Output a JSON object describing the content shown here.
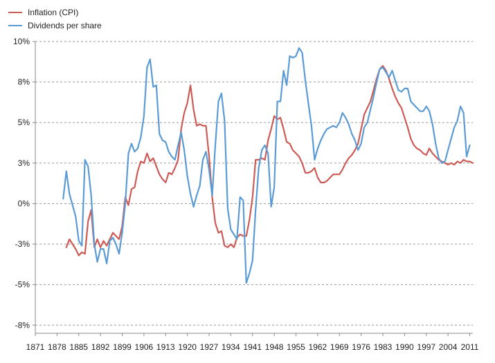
{
  "chart_data": {
    "type": "line",
    "title": "",
    "xlabel": "",
    "ylabel": "",
    "xlim": [
      1871,
      2012
    ],
    "ylim": [
      -8,
      10
    ],
    "x_ticks": [
      1871,
      1878,
      1885,
      1892,
      1899,
      1906,
      1913,
      1920,
      1927,
      1934,
      1941,
      1948,
      1955,
      1962,
      1969,
      1976,
      1983,
      1990,
      1997,
      2004,
      2011
    ],
    "y_ticks": [
      {
        "value": 10,
        "label": "10%"
      },
      {
        "value": 7.5,
        "label": "8%"
      },
      {
        "value": 5,
        "label": "5%"
      },
      {
        "value": 2.5,
        "label": "3%"
      },
      {
        "value": 0,
        "label": "0%"
      },
      {
        "value": -2.5,
        "label": "-3%"
      },
      {
        "value": -5,
        "label": "-5%"
      },
      {
        "value": -7.5,
        "label": "-8%"
      }
    ],
    "grid": true,
    "legend_position": "top-left",
    "series": [
      {
        "name": "Inflation (CPI)",
        "color": "#cc5a55",
        "points": [
          [
            1881,
            -2.7
          ],
          [
            1882,
            -2.2
          ],
          [
            1883,
            -2.5
          ],
          [
            1884,
            -2.8
          ],
          [
            1885,
            -3.2
          ],
          [
            1886,
            -3
          ],
          [
            1887,
            -3.1
          ],
          [
            1888,
            -1.1
          ],
          [
            1889,
            -0.4
          ],
          [
            1890,
            -2.7
          ],
          [
            1891,
            -2.2
          ],
          [
            1892,
            -2.7
          ],
          [
            1893,
            -2.3
          ],
          [
            1894,
            -2.6
          ],
          [
            1895,
            -2.2
          ],
          [
            1896,
            -1.8
          ],
          [
            1897,
            -2
          ],
          [
            1898,
            -2.2
          ],
          [
            1899,
            -1.4
          ],
          [
            1900,
            0.4
          ],
          [
            1901,
            -0.1
          ],
          [
            1902,
            0.9
          ],
          [
            1903,
            1
          ],
          [
            1904,
            2
          ],
          [
            1905,
            2.6
          ],
          [
            1906,
            2.5
          ],
          [
            1907,
            3.1
          ],
          [
            1908,
            2.6
          ],
          [
            1909,
            2.8
          ],
          [
            1910,
            2.3
          ],
          [
            1911,
            1.8
          ],
          [
            1912,
            1.5
          ],
          [
            1913,
            1.3
          ],
          [
            1914,
            1.9
          ],
          [
            1915,
            1.8
          ],
          [
            1916,
            2.2
          ],
          [
            1917,
            2.7
          ],
          [
            1918,
            4.6
          ],
          [
            1919,
            5.6
          ],
          [
            1920,
            6.2
          ],
          [
            1921,
            7.3
          ],
          [
            1922,
            5.8
          ],
          [
            1923,
            4.8
          ],
          [
            1924,
            4.9
          ],
          [
            1925,
            4.8
          ],
          [
            1926,
            4.8
          ],
          [
            1927,
            2.9
          ],
          [
            1928,
            0.4
          ],
          [
            1929,
            -1.2
          ],
          [
            1930,
            -1.8
          ],
          [
            1931,
            -1.7
          ],
          [
            1932,
            -2.6
          ],
          [
            1933,
            -2.7
          ],
          [
            1934,
            -2.5
          ],
          [
            1935,
            -2.7
          ],
          [
            1936,
            -2.1
          ],
          [
            1937,
            -1.9
          ],
          [
            1938,
            -2
          ],
          [
            1939,
            -2
          ],
          [
            1940,
            -1
          ],
          [
            1941,
            0.4
          ],
          [
            1942,
            2.7
          ],
          [
            1943,
            2.7
          ],
          [
            1944,
            2.8
          ],
          [
            1945,
            2.7
          ],
          [
            1946,
            3.9
          ],
          [
            1947,
            4.6
          ],
          [
            1948,
            5.4
          ],
          [
            1949,
            5.2
          ],
          [
            1950,
            5.3
          ],
          [
            1951,
            4.6
          ],
          [
            1952,
            3.8
          ],
          [
            1953,
            3.7
          ],
          [
            1954,
            3.3
          ],
          [
            1955,
            3.1
          ],
          [
            1956,
            2.9
          ],
          [
            1957,
            2.5
          ],
          [
            1958,
            1.9
          ],
          [
            1959,
            1.9
          ],
          [
            1960,
            2
          ],
          [
            1961,
            2.2
          ],
          [
            1962,
            1.6
          ],
          [
            1963,
            1.3
          ],
          [
            1964,
            1.3
          ],
          [
            1965,
            1.4
          ],
          [
            1966,
            1.6
          ],
          [
            1967,
            1.8
          ],
          [
            1968,
            1.8
          ],
          [
            1969,
            1.8
          ],
          [
            1970,
            2.1
          ],
          [
            1971,
            2.5
          ],
          [
            1972,
            2.8
          ],
          [
            1973,
            3
          ],
          [
            1974,
            3.3
          ],
          [
            1975,
            3.7
          ],
          [
            1976,
            4.6
          ],
          [
            1977,
            5.5
          ],
          [
            1978,
            5.9
          ],
          [
            1979,
            6.3
          ],
          [
            1980,
            7
          ],
          [
            1981,
            7.7
          ],
          [
            1982,
            8.3
          ],
          [
            1983,
            8.5
          ],
          [
            1984,
            8.2
          ],
          [
            1985,
            7.7
          ],
          [
            1986,
            7.1
          ],
          [
            1987,
            6.6
          ],
          [
            1988,
            6.2
          ],
          [
            1989,
            5.9
          ],
          [
            1990,
            5.3
          ],
          [
            1991,
            4.7
          ],
          [
            1992,
            4
          ],
          [
            1993,
            3.6
          ],
          [
            1994,
            3.4
          ],
          [
            1995,
            3.3
          ],
          [
            1996,
            3.1
          ],
          [
            1997,
            3
          ],
          [
            1998,
            3.4
          ],
          [
            1999,
            3.1
          ],
          [
            2000,
            2.9
          ],
          [
            2001,
            2.7
          ],
          [
            2002,
            2.6
          ],
          [
            2003,
            2.5
          ],
          [
            2004,
            2.4
          ],
          [
            2005,
            2.5
          ],
          [
            2006,
            2.4
          ],
          [
            2007,
            2.6
          ],
          [
            2008,
            2.5
          ],
          [
            2009,
            2.7
          ],
          [
            2010,
            2.6
          ],
          [
            2011,
            2.6
          ],
          [
            2012,
            2.5
          ]
        ]
      },
      {
        "name": "Dividends per share",
        "color": "#5b9bd5",
        "points": [
          [
            1880,
            0.3
          ],
          [
            1881,
            2
          ],
          [
            1882,
            0.6
          ],
          [
            1883,
            -0.1
          ],
          [
            1884,
            -0.8
          ],
          [
            1885,
            -2.3
          ],
          [
            1886,
            -2.6
          ],
          [
            1887,
            2.7
          ],
          [
            1888,
            2.3
          ],
          [
            1889,
            0.5
          ],
          [
            1890,
            -2.5
          ],
          [
            1891,
            -3.6
          ],
          [
            1892,
            -2.8
          ],
          [
            1893,
            -2.8
          ],
          [
            1894,
            -3.7
          ],
          [
            1895,
            -2.3
          ],
          [
            1896,
            -2.1
          ],
          [
            1897,
            -2.5
          ],
          [
            1898,
            -3.1
          ],
          [
            1899,
            -1.8
          ],
          [
            1900,
            0
          ],
          [
            1901,
            3.1
          ],
          [
            1902,
            3.7
          ],
          [
            1903,
            3.2
          ],
          [
            1904,
            3.4
          ],
          [
            1905,
            4.1
          ],
          [
            1906,
            5.4
          ],
          [
            1907,
            8.4
          ],
          [
            1908,
            8.9
          ],
          [
            1909,
            7.2
          ],
          [
            1910,
            7.3
          ],
          [
            1911,
            4.3
          ],
          [
            1912,
            3.9
          ],
          [
            1913,
            3.8
          ],
          [
            1914,
            3.2
          ],
          [
            1915,
            2.9
          ],
          [
            1916,
            2.7
          ],
          [
            1917,
            3.6
          ],
          [
            1918,
            4.4
          ],
          [
            1919,
            3.3
          ],
          [
            1920,
            1.7
          ],
          [
            1921,
            0.6
          ],
          [
            1922,
            -0.2
          ],
          [
            1923,
            0.5
          ],
          [
            1924,
            1.1
          ],
          [
            1925,
            2.7
          ],
          [
            1926,
            3.2
          ],
          [
            1927,
            2.1
          ],
          [
            1928,
            0.5
          ],
          [
            1929,
            3.6
          ],
          [
            1930,
            6.3
          ],
          [
            1931,
            6.8
          ],
          [
            1932,
            5.1
          ],
          [
            1933,
            -0.3
          ],
          [
            1934,
            -1.6
          ],
          [
            1935,
            -1.9
          ],
          [
            1936,
            -2.2
          ],
          [
            1937,
            0.4
          ],
          [
            1938,
            0.2
          ],
          [
            1939,
            -4.9
          ],
          [
            1940,
            -4.3
          ],
          [
            1941,
            -3.5
          ],
          [
            1942,
            -0.4
          ],
          [
            1943,
            2.2
          ],
          [
            1944,
            3.3
          ],
          [
            1945,
            3.6
          ],
          [
            1946,
            3.1
          ],
          [
            1947,
            -0.2
          ],
          [
            1948,
            1
          ],
          [
            1949,
            6.3
          ],
          [
            1950,
            6.3
          ],
          [
            1951,
            8.2
          ],
          [
            1952,
            7.3
          ],
          [
            1953,
            9.1
          ],
          [
            1954,
            9
          ],
          [
            1955,
            9.1
          ],
          [
            1956,
            9.6
          ],
          [
            1957,
            9.3
          ],
          [
            1958,
            7.6
          ],
          [
            1959,
            6.2
          ],
          [
            1960,
            4.8
          ],
          [
            1961,
            2.7
          ],
          [
            1962,
            3.4
          ],
          [
            1963,
            3.9
          ],
          [
            1964,
            4.3
          ],
          [
            1965,
            4.6
          ],
          [
            1966,
            4.7
          ],
          [
            1967,
            4.8
          ],
          [
            1968,
            4.7
          ],
          [
            1969,
            5
          ],
          [
            1970,
            5.6
          ],
          [
            1971,
            5.3
          ],
          [
            1972,
            4.9
          ],
          [
            1973,
            4.3
          ],
          [
            1974,
            3.9
          ],
          [
            1975,
            3.3
          ],
          [
            1976,
            3.7
          ],
          [
            1977,
            4.7
          ],
          [
            1978,
            5
          ],
          [
            1979,
            5.8
          ],
          [
            1980,
            6.6
          ],
          [
            1981,
            7.5
          ],
          [
            1982,
            8.3
          ],
          [
            1983,
            8.4
          ],
          [
            1984,
            8.1
          ],
          [
            1985,
            7.8
          ],
          [
            1986,
            8.2
          ],
          [
            1987,
            7.6
          ],
          [
            1988,
            7
          ],
          [
            1989,
            6.9
          ],
          [
            1990,
            7.1
          ],
          [
            1991,
            7.1
          ],
          [
            1992,
            6.3
          ],
          [
            1993,
            6.1
          ],
          [
            1994,
            5.9
          ],
          [
            1995,
            5.7
          ],
          [
            1996,
            5.7
          ],
          [
            1997,
            6
          ],
          [
            1998,
            5.7
          ],
          [
            1999,
            4.9
          ],
          [
            2000,
            3.7
          ],
          [
            2001,
            2.8
          ],
          [
            2002,
            2.5
          ],
          [
            2003,
            2.6
          ],
          [
            2004,
            3.3
          ],
          [
            2005,
            4
          ],
          [
            2006,
            4.7
          ],
          [
            2007,
            5.1
          ],
          [
            2008,
            6
          ],
          [
            2009,
            5.6
          ],
          [
            2010,
            2.9
          ],
          [
            2011,
            3.6
          ]
        ]
      }
    ]
  }
}
